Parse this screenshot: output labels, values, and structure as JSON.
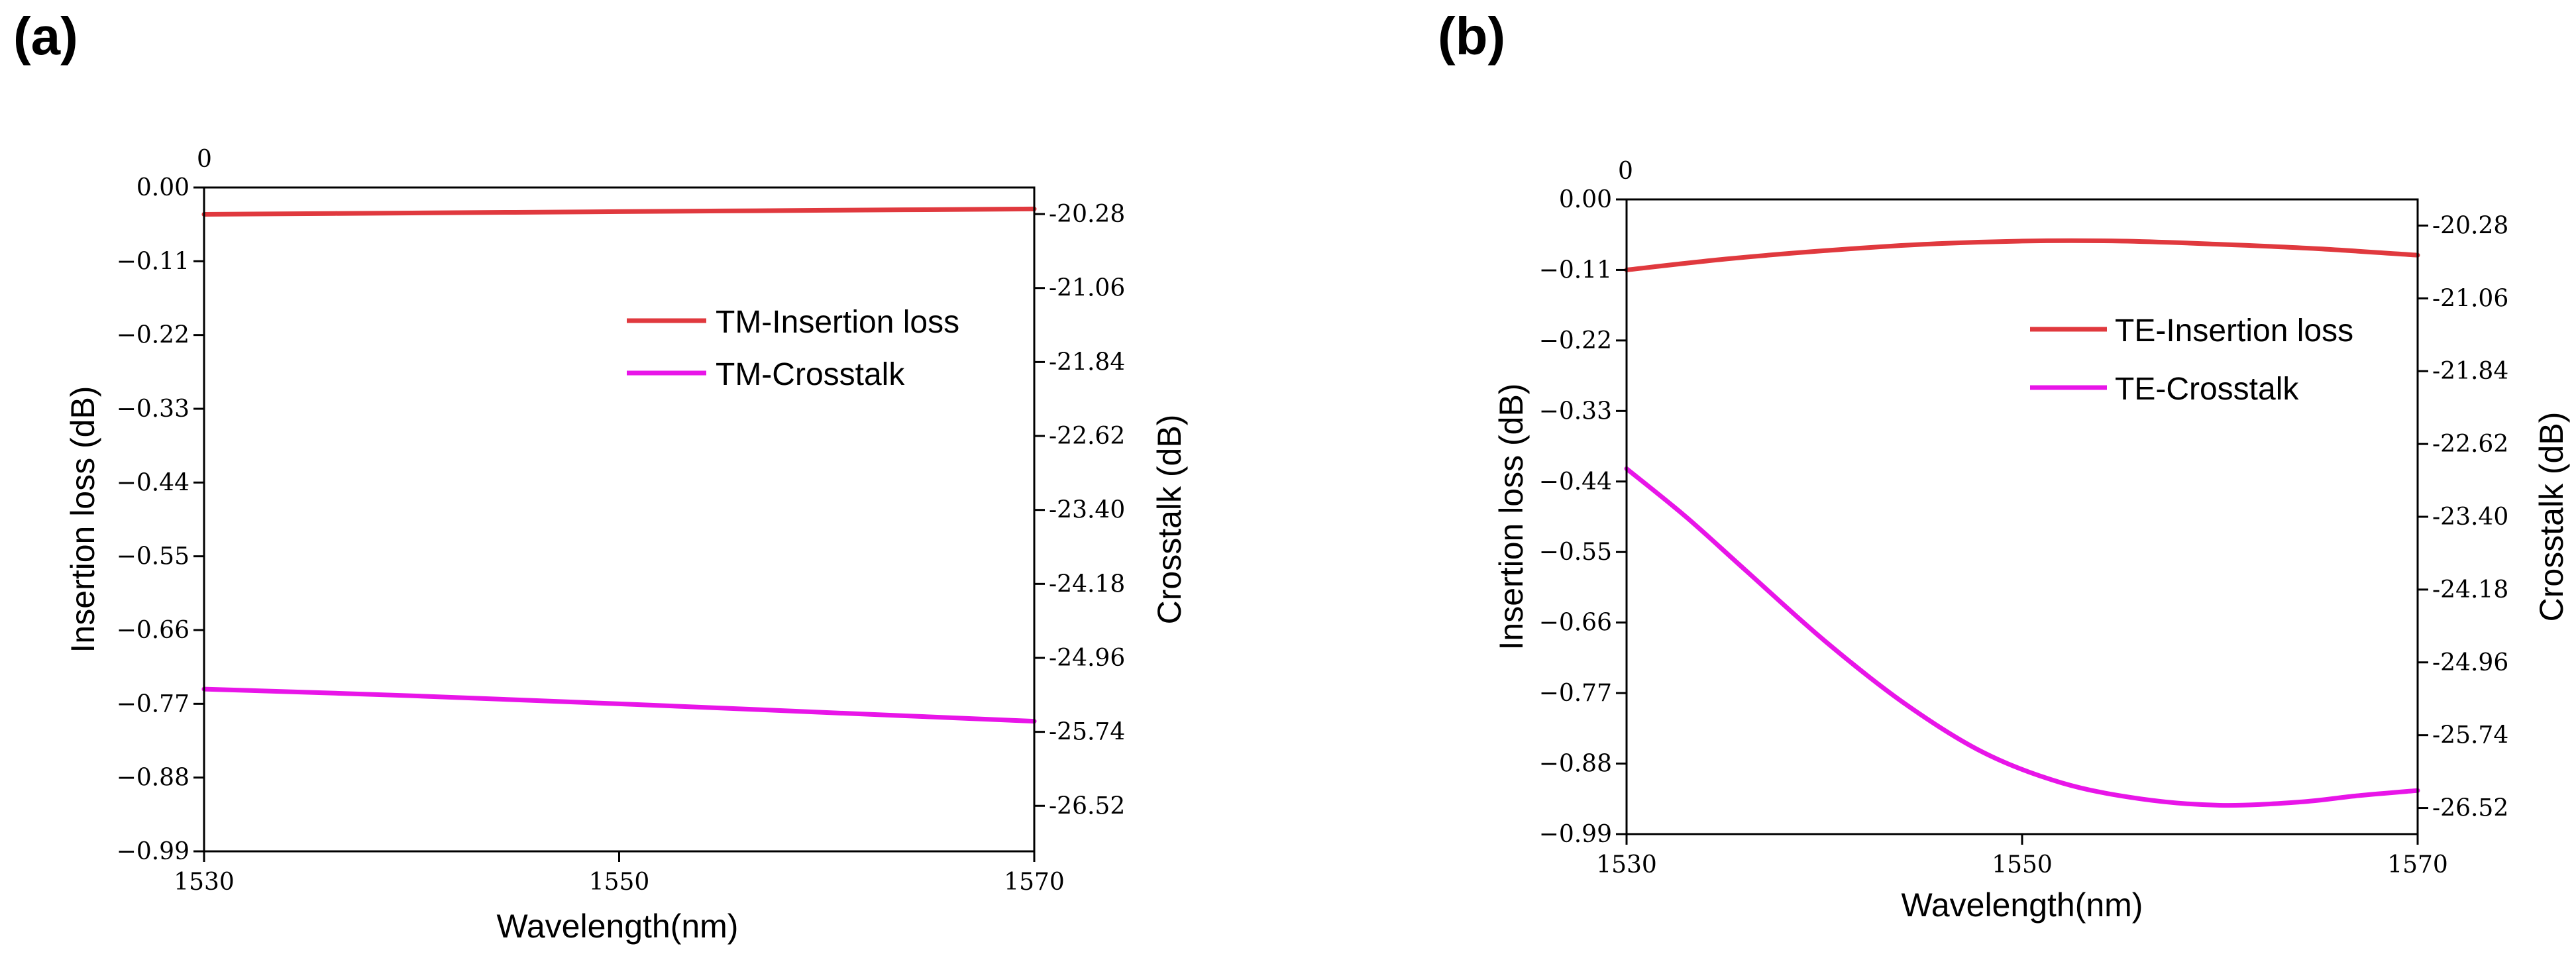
{
  "chart_data": [
    {
      "id": "a",
      "panel_label": "(a)",
      "type": "line",
      "xlabel": "Wavelength(nm)",
      "ylabel": "Insertion loss (dB)",
      "y2label": "Crosstalk (dB)",
      "x_ticks": [
        "1530",
        "1550",
        "1570"
      ],
      "xlim": [
        1530,
        1570
      ],
      "y_ticks": [
        "0.00",
        "−0.11",
        "−0.22",
        "−0.33",
        "−0.44",
        "−0.55",
        "−0.66",
        "−0.77",
        "−0.88",
        "−0.99"
      ],
      "ylim": [
        -0.99,
        0.0
      ],
      "y_top_extra": "0",
      "y2_ticks": [
        "-20.28",
        "-21.06",
        "-21.84",
        "-22.62",
        "-23.40",
        "-24.18",
        "-24.96",
        "-25.74",
        "-26.52"
      ],
      "y2_tick_values": [
        -20.28,
        -21.06,
        -21.84,
        -22.62,
        -23.4,
        -24.18,
        -24.96,
        -25.74,
        -26.52
      ],
      "y2lim": [
        -20.0,
        -27.0
      ],
      "series": [
        {
          "name": "TM-Insertion loss",
          "color": "#e0393e",
          "axis": "left",
          "x": [
            1530,
            1540,
            1550,
            1560,
            1570
          ],
          "y": [
            -0.04,
            -0.038,
            -0.036,
            -0.034,
            -0.032
          ]
        },
        {
          "name": "TM-Crosstalk",
          "color": "#e815e8",
          "axis": "left",
          "x": [
            1530,
            1540,
            1550,
            1560,
            1570
          ],
          "y": [
            -0.748,
            -0.758,
            -0.77,
            -0.783,
            -0.796
          ]
        }
      ],
      "legend": [
        {
          "label": "TM-Insertion loss",
          "color": "#e0393e"
        },
        {
          "label": "TM-Crosstalk",
          "color": "#e815e8"
        }
      ]
    },
    {
      "id": "b",
      "panel_label": "(b)",
      "type": "line",
      "xlabel": "Wavelength(nm)",
      "ylabel": "Insertion loss (dB)",
      "y2label": "Crosstalk (dB)",
      "x_ticks": [
        "1530",
        "1550",
        "1570"
      ],
      "xlim": [
        1530,
        1570
      ],
      "y_ticks": [
        "0.00",
        "−0.11",
        "−0.22",
        "−0.33",
        "−0.44",
        "−0.55",
        "−0.66",
        "−0.77",
        "−0.88",
        "−0.99"
      ],
      "ylim": [
        -0.99,
        0.0
      ],
      "y_top_extra": "0",
      "y2_ticks": [
        "-20.28",
        "-21.06",
        "-21.84",
        "-22.62",
        "-23.40",
        "-24.18",
        "-24.96",
        "-25.74",
        "-26.52"
      ],
      "y2_tick_values": [
        -20.28,
        -21.06,
        -21.84,
        -22.62,
        -23.4,
        -24.18,
        -24.96,
        -25.74,
        -26.52
      ],
      "y2lim": [
        -20.0,
        -26.8
      ],
      "series": [
        {
          "name": "TE-Insertion loss",
          "color": "#e0393e",
          "axis": "left",
          "x": [
            1530,
            1535,
            1540,
            1545,
            1550,
            1555,
            1560,
            1565,
            1570
          ],
          "y": [
            -0.11,
            -0.093,
            -0.08,
            -0.07,
            -0.065,
            -0.065,
            -0.07,
            -0.077,
            -0.087
          ]
        },
        {
          "name": "TE-Crosstalk",
          "color": "#e815e8",
          "axis": "left",
          "x": [
            1530,
            1533,
            1536,
            1540,
            1544,
            1548,
            1552,
            1556,
            1560,
            1564,
            1567,
            1570
          ],
          "y": [
            -0.42,
            -0.495,
            -0.578,
            -0.688,
            -0.785,
            -0.862,
            -0.91,
            -0.935,
            -0.945,
            -0.94,
            -0.93,
            -0.922
          ]
        }
      ],
      "legend": [
        {
          "label": "TE-Insertion loss",
          "color": "#e0393e"
        },
        {
          "label": "TE-Crosstalk",
          "color": "#e815e8"
        }
      ]
    }
  ]
}
